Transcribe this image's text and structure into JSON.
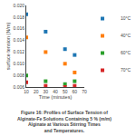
{
  "chart_data": {
    "type": "scatter",
    "xlabel": "Time (minutes)",
    "ylabel": "surface tension (N/m)",
    "annotations": [
      "Figure 16: Profiles of Surface Tension of",
      "Alginate-Fe Solutions Containing 5 % (m/m)",
      "Alginate at Various Stirring Times",
      "and Temperatures."
    ],
    "xlim": [
      10,
      70
    ],
    "ylim": [
      0.006,
      0.02
    ],
    "xticks": [
      10,
      20,
      30,
      40,
      50,
      60,
      70
    ],
    "yticks": [
      0.006,
      0.008,
      {
        "value": 0.01,
        "label": "0.010"
      },
      0.012,
      0.014,
      0.016,
      0.018,
      {
        "value": 0.02,
        "label": "0.020"
      }
    ],
    "x": [
      10,
      30,
      50,
      60
    ],
    "series": [
      {
        "name": "10°C",
        "values": [
          0.0185,
          0.0155,
          0.0125,
          0.0115
        ]
      },
      {
        "name": "40°C",
        "values": [
          0.0145,
          0.012,
          0.01,
          0.0085
        ]
      },
      {
        "name": "60°C",
        "values": [
          0.008,
          0.007,
          0.0065,
          0.007
        ]
      },
      {
        "name": "70°C",
        "values": [
          0.0068,
          0.0062,
          0.006,
          0.0062
        ]
      }
    ],
    "marker": "square",
    "legend": "upper right",
    "grid": false
  }
}
